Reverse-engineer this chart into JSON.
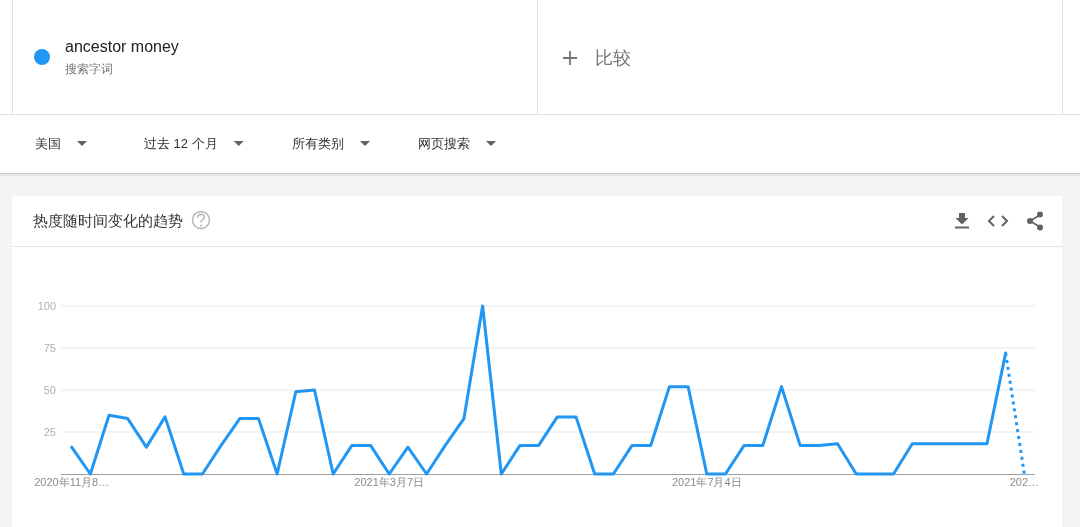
{
  "chart_data": {
    "type": "line",
    "title": "热度随时间变化的趋势",
    "annotations": [
      "搜索字词",
      "比较",
      "美国",
      "过去 12 个月",
      "所有类别",
      "网页搜索"
    ],
    "x": [
      "2020-11-08",
      "2020-11-15",
      "2020-11-22",
      "2020-11-29",
      "2020-12-06",
      "2020-12-13",
      "2020-12-20",
      "2020-12-27",
      "2021-01-03",
      "2021-01-10",
      "2021-01-17",
      "2021-01-24",
      "2021-01-31",
      "2021-02-07",
      "2021-02-14",
      "2021-02-21",
      "2021-02-28",
      "2021-03-07",
      "2021-03-14",
      "2021-03-21",
      "2021-03-28",
      "2021-04-04",
      "2021-04-11",
      "2021-04-18",
      "2021-04-25",
      "2021-05-02",
      "2021-05-09",
      "2021-05-16",
      "2021-05-23",
      "2021-05-30",
      "2021-06-06",
      "2021-06-13",
      "2021-06-20",
      "2021-06-27",
      "2021-07-04",
      "2021-07-11",
      "2021-07-18",
      "2021-07-25",
      "2021-08-01",
      "2021-08-08",
      "2021-08-15",
      "2021-08-22",
      "2021-08-29",
      "2021-09-05",
      "2021-09-12",
      "2021-09-19",
      "2021-09-26",
      "2021-10-03",
      "2021-10-10",
      "2021-10-17",
      "2021-10-24",
      "2021-10-31"
    ],
    "series": [
      {
        "name": "ancestor money",
        "color": "#2196f3",
        "values": [
          16,
          0,
          35,
          33,
          16,
          34,
          0,
          0,
          17,
          33,
          33,
          0,
          49,
          50,
          0,
          17,
          17,
          0,
          16,
          0,
          17,
          33,
          100,
          0,
          17,
          17,
          34,
          34,
          0,
          0,
          17,
          17,
          52,
          52,
          0,
          0,
          17,
          17,
          52,
          17,
          17,
          18,
          0,
          0,
          0,
          18,
          18,
          18,
          18,
          18,
          72,
          null
        ]
      },
      {
        "color": "#2196f3",
        "line_style": "dotted",
        "values": [
          null,
          null,
          null,
          null,
          null,
          null,
          null,
          null,
          null,
          null,
          null,
          null,
          null,
          null,
          null,
          null,
          null,
          null,
          null,
          null,
          null,
          null,
          null,
          null,
          null,
          null,
          null,
          null,
          null,
          null,
          null,
          null,
          null,
          null,
          null,
          null,
          null,
          null,
          null,
          null,
          null,
          null,
          null,
          null,
          null,
          null,
          null,
          null,
          null,
          null,
          72,
          0
        ]
      }
    ],
    "xlim": [
      "2020-11-04",
      "2021-11-04"
    ],
    "ylim": [
      0,
      100
    ],
    "xticks": [
      {
        "value": "2020-11-08",
        "label": "2020年11月8…"
      },
      {
        "value": "2021-03-07",
        "label": "2021年3月7日"
      },
      {
        "value": "2021-07-04",
        "label": "2021年7月4日"
      },
      {
        "value": "2021-10-31",
        "label": "202…"
      }
    ],
    "yticks": [
      25,
      50,
      75,
      100
    ],
    "grid": "y",
    "legend": "top left",
    "line_style": "solid"
  }
}
